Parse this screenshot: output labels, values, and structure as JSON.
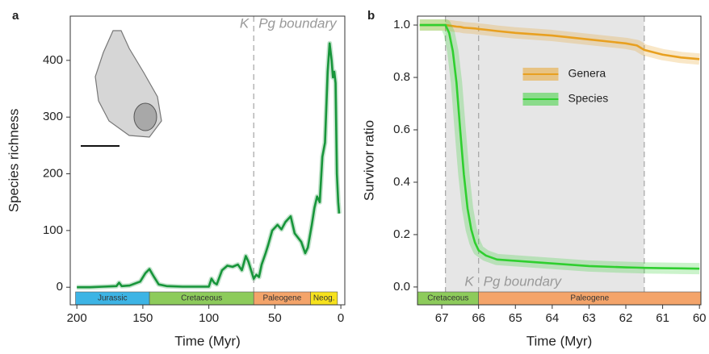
{
  "chart_data": [
    {
      "type": "line",
      "panel_label": "a",
      "ylabel": "Species richness",
      "xlabel": "Time (Myr)",
      "x": [
        200,
        190,
        180,
        170,
        168,
        166,
        160,
        152,
        148,
        145,
        142,
        138,
        132,
        120,
        110,
        100,
        98,
        96,
        94,
        90,
        86,
        82,
        78,
        75,
        72,
        70,
        68,
        66,
        64,
        62,
        60,
        57,
        55,
        52,
        48,
        45,
        42,
        38,
        35,
        30,
        27,
        25,
        22,
        20,
        18,
        16,
        14,
        12,
        10,
        8.5,
        7,
        6,
        5,
        4,
        3,
        2,
        1.3
      ],
      "values": [
        0,
        0,
        1,
        2,
        8,
        2,
        3,
        10,
        25,
        32,
        20,
        5,
        2,
        1,
        1,
        1,
        15,
        8,
        5,
        30,
        38,
        36,
        40,
        30,
        55,
        45,
        30,
        15,
        22,
        18,
        40,
        60,
        75,
        100,
        110,
        102,
        115,
        125,
        95,
        80,
        60,
        70,
        110,
        140,
        160,
        150,
        230,
        255,
        380,
        430,
        400,
        370,
        380,
        360,
        200,
        150,
        130
      ],
      "color": "#17953a",
      "xlim": [
        205,
        -3
      ],
      "ylim": [
        -31,
        478
      ],
      "xticks": [
        200,
        150,
        100,
        50,
        0
      ],
      "yticks": [
        0,
        100,
        200,
        300,
        400
      ],
      "vlines": [
        66
      ],
      "boundary_label_left": "K",
      "boundary_label_right": "Pg boundary",
      "periods": [
        {
          "name": "Jurassic",
          "start": 201,
          "end": 145,
          "color": "#3db4e5"
        },
        {
          "name": "Cretaceous",
          "start": 145,
          "end": 66,
          "color": "#8dcb5b"
        },
        {
          "name": "Paleogene",
          "start": 66,
          "end": 23,
          "color": "#f4a46a"
        },
        {
          "name": "Neog.",
          "start": 23,
          "end": 2.6,
          "color": "#f7e21c"
        }
      ]
    },
    {
      "type": "line",
      "panel_label": "b",
      "ylabel": "Survivor ratio",
      "xlabel": "Time (Myr)",
      "x": [
        67.6,
        67,
        66.9,
        66.8,
        66.7,
        66.6,
        66.5,
        66.4,
        66.3,
        66.2,
        66.1,
        66,
        65.8,
        65.5,
        65,
        64,
        63,
        62,
        61.7,
        61.5,
        61,
        60.5,
        60
      ],
      "series": [
        {
          "name": "Genera",
          "color": "#e8a020",
          "values": [
            1,
            1,
            1,
            0.998,
            0.996,
            0.994,
            0.993,
            0.99,
            0.989,
            0.988,
            0.987,
            0.985,
            0.982,
            0.977,
            0.97,
            0.96,
            0.945,
            0.93,
            0.922,
            0.905,
            0.887,
            0.876,
            0.87
          ]
        },
        {
          "name": "Species",
          "color": "#2fcf2f",
          "values": [
            1,
            1,
            1,
            0.97,
            0.9,
            0.78,
            0.6,
            0.43,
            0.3,
            0.22,
            0.17,
            0.14,
            0.12,
            0.105,
            0.1,
            0.09,
            0.08,
            0.075,
            0.074,
            0.073,
            0.072,
            0.071,
            0.07
          ]
        }
      ],
      "xlim": [
        67.66,
        59.96
      ],
      "ylim": [
        -0.068,
        1.034
      ],
      "xticks": [
        67,
        66,
        65,
        64,
        63,
        62,
        61,
        60
      ],
      "yticks": [
        {
          "value": 0,
          "label": "0.0"
        },
        0.2,
        0.4,
        0.6,
        0.8,
        {
          "value": 1,
          "label": "1.0"
        }
      ],
      "shade": [
        66.9,
        61.5
      ],
      "vlines": [
        66.9,
        66,
        61.5
      ],
      "boundary_label_left": "K",
      "boundary_label_right": "Pg boundary",
      "legend": "upper center",
      "periods": [
        {
          "name": "Cretaceous",
          "start": 145,
          "end": 66,
          "color": "#8dcb5b"
        },
        {
          "name": "Paleogene",
          "start": 66,
          "end": 23,
          "color": "#f4a46a"
        }
      ]
    }
  ]
}
